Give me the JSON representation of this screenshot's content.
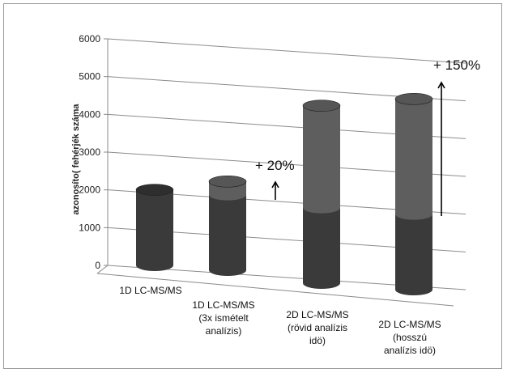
{
  "chart_data": {
    "type": "bar",
    "style": "3d-cylinder-stacked",
    "ylabel": "azonosíto( fehérjék száma",
    "ylim": [
      0,
      6000
    ],
    "yticks": [
      0,
      1000,
      2000,
      3000,
      4000,
      5000,
      6000
    ],
    "grid": true,
    "categories": [
      [
        "1D LC-MS/MS"
      ],
      [
        "1D LC-MS/MS",
        "(3x ismételt",
        "analízis)"
      ],
      [
        "2D LC-MS/MS",
        "(rövid analízis",
        "idö)"
      ],
      [
        "2D LC-MS/MS",
        "(hosszú",
        "analízis idö)"
      ]
    ],
    "series": [
      {
        "values": [
          2000,
          2000,
          2000,
          2000
        ],
        "color": "#3a3a3a"
      },
      {
        "values": [
          0,
          350,
          2700,
          3050
        ],
        "color": "#5e5e5e"
      }
    ],
    "annotations": [
      {
        "text": "+ 20%",
        "target_bar": 1
      },
      {
        "text": "+ 150%",
        "target_bar": 3
      }
    ]
  }
}
